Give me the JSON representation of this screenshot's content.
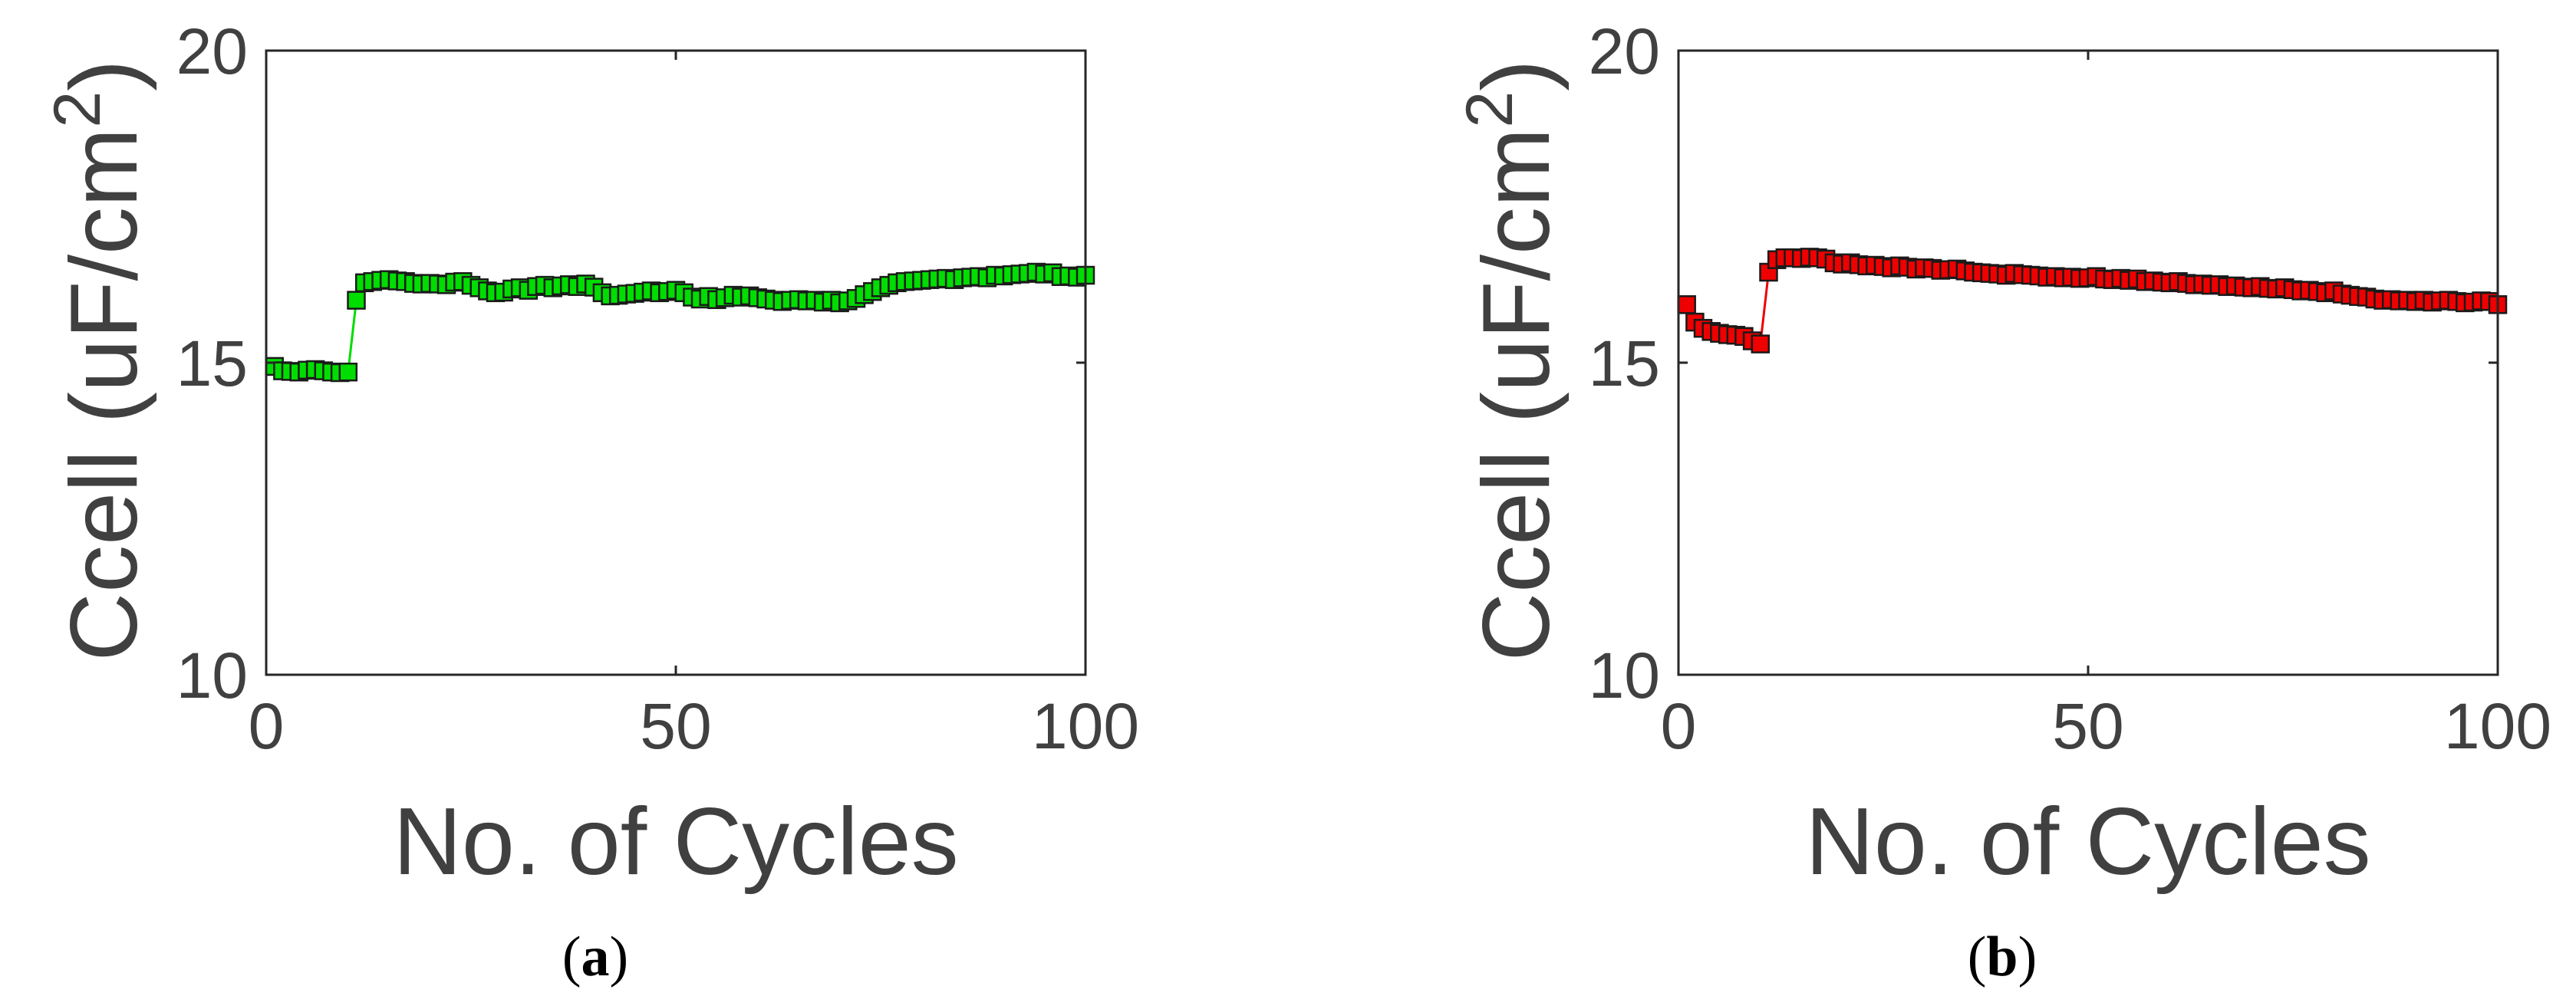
{
  "panels": [
    {
      "label_open": "(",
      "label_letter": "a",
      "label_close": ")",
      "chart_data": {
        "type": "line",
        "xlabel": "No. of Cycles",
        "ylabel": "Ccell (uF/cm",
        "ylabel_superscript": "2",
        "ylabel_close": ")",
        "xlim": [
          0,
          100
        ],
        "ylim": [
          10,
          20
        ],
        "xticks": [
          0,
          50,
          100
        ],
        "yticks": [
          10,
          15,
          20
        ],
        "grid": false,
        "marker": "square",
        "series": [
          {
            "color": "#00dd00",
            "x": [
              1,
              2,
              3,
              4,
              5,
              6,
              7,
              8,
              9,
              10,
              11,
              12,
              13,
              14,
              15,
              16,
              17,
              18,
              19,
              20,
              21,
              22,
              23,
              24,
              25,
              26,
              27,
              28,
              29,
              30,
              31,
              32,
              33,
              34,
              35,
              36,
              37,
              38,
              39,
              40,
              41,
              42,
              43,
              44,
              45,
              46,
              47,
              48,
              49,
              50,
              51,
              52,
              53,
              54,
              55,
              56,
              57,
              58,
              59,
              60,
              61,
              62,
              63,
              64,
              65,
              66,
              67,
              68,
              69,
              70,
              71,
              72,
              73,
              74,
              75,
              76,
              77,
              78,
              79,
              80,
              81,
              82,
              83,
              84,
              85,
              86,
              87,
              88,
              89,
              90,
              91,
              92,
              93,
              94,
              95,
              96,
              97,
              98,
              99,
              100
            ],
            "y": [
              14.94,
              14.87,
              14.86,
              14.85,
              14.88,
              14.89,
              14.87,
              14.85,
              14.84,
              14.85,
              16.0,
              16.28,
              16.3,
              16.32,
              16.33,
              16.31,
              16.3,
              16.27,
              16.26,
              16.27,
              16.26,
              16.25,
              16.29,
              16.3,
              16.24,
              16.2,
              16.15,
              16.12,
              16.13,
              16.18,
              16.2,
              16.16,
              16.22,
              16.24,
              16.2,
              16.23,
              16.25,
              16.22,
              16.26,
              16.21,
              16.12,
              16.07,
              16.08,
              16.1,
              16.11,
              16.13,
              16.15,
              16.12,
              16.14,
              16.16,
              16.12,
              16.05,
              16.02,
              16.06,
              16.01,
              16.04,
              16.08,
              16.05,
              16.07,
              16.04,
              16.02,
              16.0,
              15.98,
              16.0,
              16.01,
              15.99,
              16.0,
              15.97,
              16.0,
              15.96,
              15.99,
              16.03,
              16.09,
              16.14,
              16.2,
              16.24,
              16.28,
              16.3,
              16.31,
              16.32,
              16.33,
              16.34,
              16.35,
              16.33,
              16.36,
              16.37,
              16.38,
              16.36,
              16.4,
              16.39,
              16.41,
              16.42,
              16.43,
              16.45,
              16.42,
              16.44,
              16.38,
              16.39,
              16.37,
              16.4
            ]
          }
        ]
      }
    },
    {
      "label_open": "(",
      "label_letter": "b",
      "label_close": ")",
      "chart_data": {
        "type": "line",
        "xlabel": "No. of Cycles",
        "ylabel": "Ccell (uF/cm",
        "ylabel_superscript": "2",
        "ylabel_close": ")",
        "xlim": [
          0,
          100
        ],
        "ylim": [
          10,
          20
        ],
        "xticks": [
          0,
          50,
          100
        ],
        "yticks": [
          10,
          15,
          20
        ],
        "grid": false,
        "marker": "square",
        "series": [
          {
            "color": "#ee0000",
            "x": [
              1,
              2,
              3,
              4,
              5,
              6,
              7,
              8,
              9,
              10,
              11,
              12,
              13,
              14,
              15,
              16,
              17,
              18,
              19,
              20,
              21,
              22,
              23,
              24,
              25,
              26,
              27,
              28,
              29,
              30,
              31,
              32,
              33,
              34,
              35,
              36,
              37,
              38,
              39,
              40,
              41,
              42,
              43,
              44,
              45,
              46,
              47,
              48,
              49,
              50,
              51,
              52,
              53,
              54,
              55,
              56,
              57,
              58,
              59,
              60,
              61,
              62,
              63,
              64,
              65,
              66,
              67,
              68,
              69,
              70,
              71,
              72,
              73,
              74,
              75,
              76,
              77,
              78,
              79,
              80,
              81,
              82,
              83,
              84,
              85,
              86,
              87,
              88,
              89,
              90,
              91,
              92,
              93,
              94,
              95,
              96,
              97,
              98,
              99,
              100
            ],
            "y": [
              15.93,
              15.65,
              15.55,
              15.5,
              15.47,
              15.45,
              15.44,
              15.42,
              15.35,
              15.3,
              16.45,
              16.65,
              16.68,
              16.68,
              16.67,
              16.69,
              16.68,
              16.66,
              16.6,
              16.58,
              16.6,
              16.57,
              16.55,
              16.56,
              16.54,
              16.52,
              16.55,
              16.53,
              16.5,
              16.52,
              16.51,
              16.48,
              16.49,
              16.5,
              16.47,
              16.45,
              16.44,
              16.43,
              16.42,
              16.4,
              16.43,
              16.41,
              16.4,
              16.39,
              16.37,
              16.38,
              16.36,
              16.37,
              16.35,
              16.36,
              16.38,
              16.34,
              16.33,
              16.35,
              16.32,
              16.34,
              16.3,
              16.31,
              16.29,
              16.28,
              16.3,
              16.27,
              16.25,
              16.26,
              16.24,
              16.25,
              16.22,
              16.23,
              16.21,
              16.2,
              16.22,
              16.19,
              16.18,
              16.2,
              16.17,
              16.15,
              16.16,
              16.14,
              16.12,
              16.15,
              16.1,
              16.08,
              16.06,
              16.05,
              16.02,
              16.0,
              16.01,
              15.99,
              16.0,
              15.98,
              16.0,
              15.97,
              15.99,
              16.0,
              15.98,
              15.96,
              15.97,
              15.99,
              15.98,
              15.93
            ]
          }
        ]
      }
    }
  ]
}
